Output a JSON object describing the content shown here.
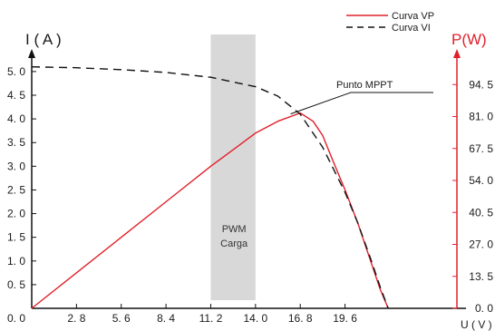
{
  "chart_data": {
    "type": "line",
    "title": "",
    "xlabel": "U ( V )",
    "ylabel_left": "I ( A )",
    "ylabel_right": "P(W)",
    "xlim": [
      0,
      26.6
    ],
    "ylim_left": [
      0,
      5.4
    ],
    "ylim_right": [
      0,
      108
    ],
    "x_ticks": [
      "0. 0",
      "2. 8",
      "5. 6",
      "8. 4",
      "11. 2",
      "14. 0",
      "16. 8",
      "19. 6"
    ],
    "y_ticks_left": [
      "0. 5",
      "1. 0",
      "1. 5",
      "2. 0",
      "2. 5",
      "3. 0",
      "3. 5",
      "4. 0",
      "4. 5",
      "5. 0"
    ],
    "y_ticks_right": [
      "0. 0",
      "13. 5",
      "27. 0",
      "40. 5",
      "54. 0",
      "67. 5",
      "81. 0",
      "94. 5"
    ],
    "legend_position": "top-right",
    "series": [
      {
        "name": "Curva VP",
        "axis": "right",
        "color": "#e0202a",
        "style": "solid",
        "x": [
          0.0,
          2.8,
          5.6,
          8.4,
          11.2,
          12.5,
          14.0,
          15.4,
          16.8,
          17.6,
          18.2,
          18.8,
          19.6,
          20.4,
          21.2,
          21.8,
          22.3
        ],
        "y": [
          0.0,
          15.0,
          30.0,
          45.0,
          60.0,
          66.5,
          74.0,
          79.0,
          82.5,
          79.0,
          73.0,
          63.0,
          50.0,
          36.0,
          20.0,
          8.0,
          0.0
        ]
      },
      {
        "name": "Curva VI",
        "axis": "left",
        "color": "#111111",
        "style": "dashed",
        "x": [
          0.0,
          2.8,
          5.6,
          8.4,
          11.2,
          14.0,
          15.4,
          16.8,
          18.2,
          19.6,
          20.4,
          21.2,
          21.8,
          22.3
        ],
        "y": [
          5.1,
          5.08,
          5.04,
          4.98,
          4.88,
          4.68,
          4.48,
          4.1,
          3.4,
          2.45,
          1.8,
          1.05,
          0.45,
          0.0
        ]
      }
    ],
    "annotations": [
      {
        "text": "Punto MPPT",
        "x": 16.2,
        "y_right": 82.5
      }
    ],
    "shaded_band": {
      "x_start": 11.2,
      "x_end": 14.0,
      "label": "PWM\nCarga",
      "color": "#d9d8d8"
    }
  },
  "legend": {
    "items": [
      {
        "label": "Curva VP",
        "color": "#e0202a",
        "style": "solid"
      },
      {
        "label": "Curva VI",
        "color": "#111111",
        "style": "dashed"
      }
    ]
  },
  "band_label_line1": "PWM",
  "band_label_line2": "Carga"
}
